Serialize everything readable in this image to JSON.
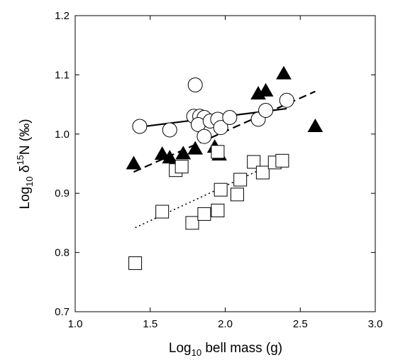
{
  "chart_data": {
    "type": "scatter",
    "xlabel": {
      "pre": "Log",
      "sub": "10",
      "post": " bell mass (g)"
    },
    "ylabel": {
      "pre": "Log",
      "sub": "10",
      "mid": " δ",
      "sup": "15",
      "post": "N (‰)"
    },
    "xlim": [
      1.0,
      3.0
    ],
    "ylim": [
      0.7,
      1.2
    ],
    "xticks": [
      "1.0",
      "1.5",
      "2.0",
      "2.5",
      "3.0"
    ],
    "yticks": [
      "0.7",
      "0.8",
      "0.9",
      "1.0",
      "1.1",
      "1.2"
    ],
    "grid": false,
    "legend": false,
    "series": [
      {
        "marker": "circle-open",
        "x": [
          1.43,
          1.63,
          1.8,
          1.79,
          1.83,
          1.86,
          1.82,
          1.86,
          1.9,
          1.95,
          1.97,
          2.03,
          2.22,
          2.27,
          2.41
        ],
        "y": [
          1.013,
          1.007,
          1.083,
          1.03,
          1.03,
          1.028,
          1.016,
          0.996,
          1.022,
          1.025,
          1.011,
          1.028,
          1.025,
          1.04,
          1.057
        ],
        "fit": {
          "style": "solid",
          "x": [
            1.43,
            2.41
          ],
          "y": [
            1.012,
            1.043
          ]
        }
      },
      {
        "marker": "triangle-filled",
        "x": [
          1.39,
          1.58,
          1.63,
          1.72,
          1.8,
          1.93,
          1.96,
          2.22,
          2.27,
          2.39,
          2.6
        ],
        "y": [
          0.95,
          0.966,
          0.96,
          0.967,
          0.975,
          0.978,
          0.965,
          1.068,
          1.073,
          1.102,
          1.013
        ],
        "fit": {
          "style": "dashed",
          "x": [
            1.39,
            2.6
          ],
          "y": [
            0.936,
            1.072
          ]
        }
      },
      {
        "marker": "square-open",
        "x": [
          1.4,
          1.58,
          1.67,
          1.71,
          1.78,
          1.86,
          1.95,
          1.97,
          1.95,
          2.08,
          2.1,
          2.19,
          2.25,
          2.33,
          2.38
        ],
        "y": [
          0.782,
          0.869,
          0.939,
          0.945,
          0.85,
          0.865,
          0.871,
          0.906,
          0.97,
          0.898,
          0.923,
          0.953,
          0.935,
          0.952,
          0.955
        ],
        "fit": {
          "style": "dotted",
          "x": [
            1.4,
            2.38
          ],
          "y": [
            0.842,
            0.957
          ]
        }
      }
    ]
  }
}
